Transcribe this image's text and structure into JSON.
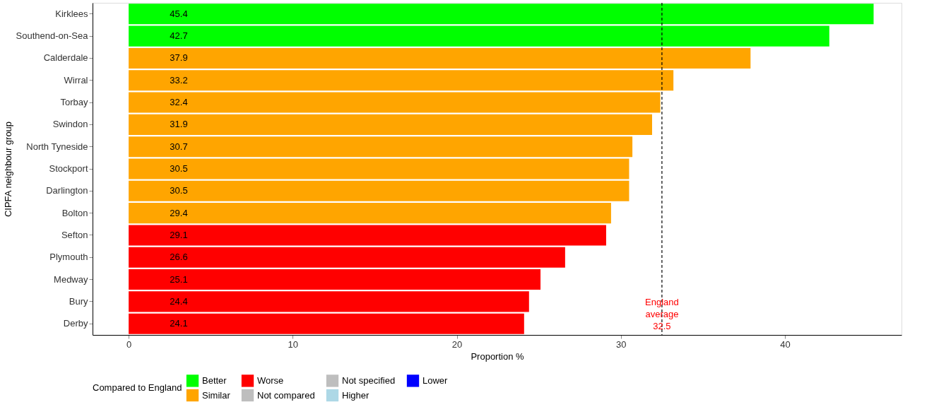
{
  "chart_data": {
    "type": "bar",
    "orientation": "horizontal",
    "xlabel": "Proportion %",
    "ylabel": "CIPFA neighbour group",
    "legend_title": "Compared to England",
    "legend": "bottom",
    "data_labels": true,
    "categories": [
      "Kirklees",
      "Southend-on-Sea",
      "Calderdale",
      "Wirral",
      "Torbay",
      "Swindon",
      "North Tyneside",
      "Stockport",
      "Darlington",
      "Bolton",
      "Sefton",
      "Plymouth",
      "Medway",
      "Bury",
      "Derby"
    ],
    "series": [
      {
        "name": "Better",
        "color": "#00ff00",
        "values": [
          45.4,
          42.7,
          null,
          null,
          null,
          null,
          null,
          null,
          null,
          null,
          null,
          null,
          null,
          null,
          null
        ]
      },
      {
        "name": "Similar",
        "color": "#ffa500",
        "values": [
          null,
          null,
          37.9,
          33.2,
          32.4,
          31.9,
          30.7,
          30.5,
          30.5,
          29.4,
          null,
          null,
          null,
          null,
          null
        ]
      },
      {
        "name": "Worse",
        "color": "#ff0000",
        "values": [
          null,
          null,
          null,
          null,
          null,
          null,
          null,
          null,
          null,
          null,
          29.1,
          26.6,
          25.1,
          24.4,
          24.1
        ]
      },
      {
        "name": "Not compared",
        "color": "#bebebe",
        "values": [
          null,
          null,
          null,
          null,
          null,
          null,
          null,
          null,
          null,
          null,
          null,
          null,
          null,
          null,
          null
        ]
      },
      {
        "name": "Not specified",
        "color": "#bebebe",
        "values": [
          null,
          null,
          null,
          null,
          null,
          null,
          null,
          null,
          null,
          null,
          null,
          null,
          null,
          null,
          null
        ]
      },
      {
        "name": "Higher",
        "color": "#add8e6",
        "values": [
          null,
          null,
          null,
          null,
          null,
          null,
          null,
          null,
          null,
          null,
          null,
          null,
          null,
          null,
          null
        ]
      },
      {
        "name": "Lower",
        "color": "#0000ff",
        "values": [
          null,
          null,
          null,
          null,
          null,
          null,
          null,
          null,
          null,
          null,
          null,
          null,
          null,
          null,
          null
        ]
      }
    ],
    "xlim": [
      -2.2,
      47.1
    ],
    "xticks": [
      0,
      10,
      20,
      30,
      40
    ],
    "ref_lines": [
      {
        "axis": "x",
        "value": 32.5,
        "label": "England average 32.5",
        "color": "#000000",
        "line_style": "dashed"
      }
    ]
  }
}
